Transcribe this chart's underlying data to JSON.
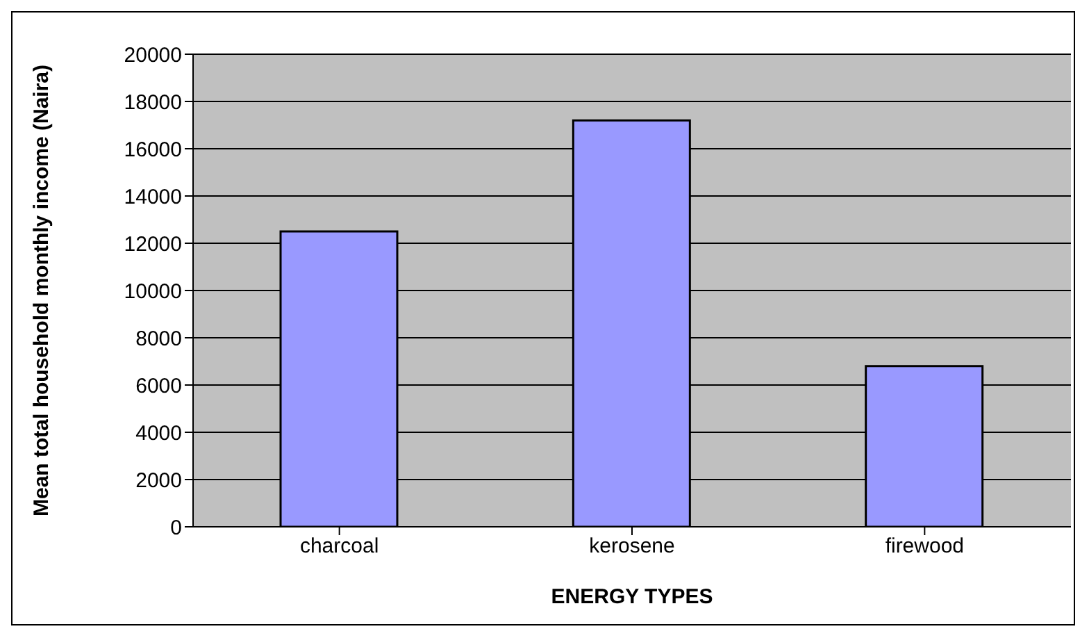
{
  "chart_data": {
    "type": "bar",
    "xlabel": "ENERGY TYPES",
    "ylabel": "Mean total household monthly income (Naira)",
    "categories": [
      "charcoal",
      "kerosene",
      "firewood"
    ],
    "values": [
      12500,
      17200,
      6800
    ],
    "color": "#9999ff",
    "ylim": [
      0,
      20000
    ],
    "yticks": [
      0,
      2000,
      4000,
      6000,
      8000,
      10000,
      12000,
      14000,
      16000,
      18000,
      20000
    ],
    "grid": "y",
    "legend": false
  }
}
